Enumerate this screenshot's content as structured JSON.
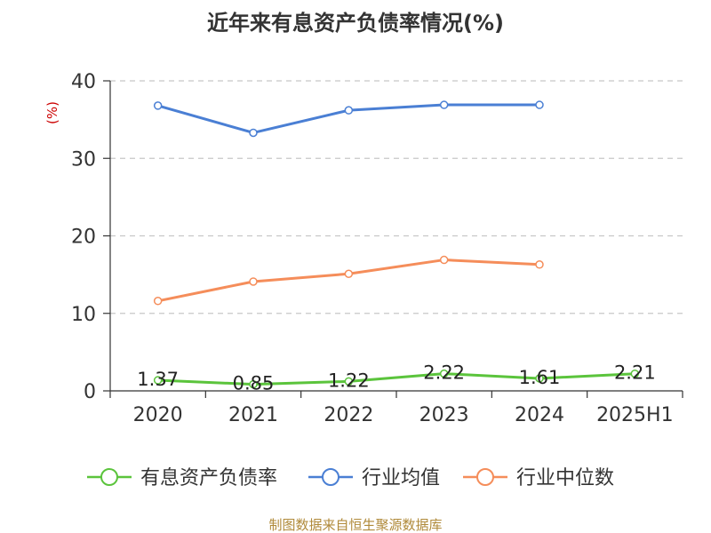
{
  "chart_data": {
    "type": "line",
    "title": "近年来有息资产负债率情况(%)",
    "ylabel": "(%)",
    "categories": [
      "2020",
      "2021",
      "2022",
      "2023",
      "2024",
      "2025H1"
    ],
    "ylim": [
      0,
      40
    ],
    "yticks": [
      "0",
      "10",
      "20",
      "30",
      "40"
    ],
    "grid": true,
    "legend_position": "bottom",
    "series": [
      {
        "name": "有息资产负债率",
        "color": "#5bc43c",
        "values": [
          1.37,
          0.85,
          1.22,
          2.22,
          1.61,
          2.21
        ],
        "labels": [
          "1.37",
          "0.85",
          "1.22",
          "2.22",
          "1.61",
          "2.21"
        ]
      },
      {
        "name": "行业均值",
        "color": "#4a7fd4",
        "values": [
          36.8,
          33.3,
          36.2,
          36.9,
          36.9,
          null
        ]
      },
      {
        "name": "行业中位数",
        "color": "#f58d5a",
        "values": [
          11.6,
          14.1,
          15.1,
          16.9,
          16.3,
          null
        ]
      }
    ]
  },
  "source": "制图数据来自恒生聚源数据库"
}
